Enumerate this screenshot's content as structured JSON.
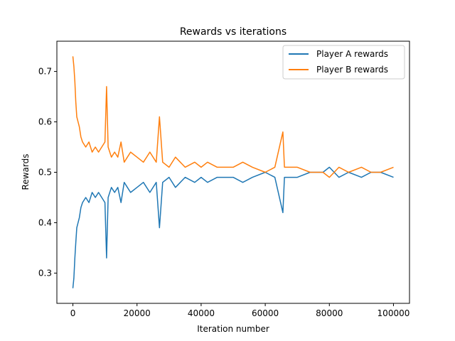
{
  "chart_data": {
    "type": "line",
    "title": "Rewards vs iterations",
    "xlabel": "Iteration number",
    "ylabel": "Rewards",
    "xlim": [
      -5000,
      105000
    ],
    "ylim": [
      0.24,
      0.76
    ],
    "xticks": [
      0,
      20000,
      40000,
      60000,
      80000,
      100000
    ],
    "xtick_labels": [
      "0",
      "20000",
      "40000",
      "60000",
      "80000",
      "100000"
    ],
    "yticks": [
      0.3,
      0.4,
      0.5,
      0.6,
      0.7
    ],
    "ytick_labels": [
      "0.3",
      "0.4",
      "0.5",
      "0.6",
      "0.7"
    ],
    "grid": false,
    "legend_position": "top-right",
    "series": [
      {
        "name": "Player A rewards",
        "color": "#1f77b4",
        "x": [
          0,
          300,
          600,
          900,
          1200,
          1600,
          2000,
          2500,
          3000,
          4000,
          5000,
          6000,
          7000,
          8000,
          9000,
          10000,
          10500,
          11000,
          12000,
          13000,
          14000,
          15000,
          16000,
          17000,
          18000,
          20000,
          22000,
          24000,
          26000,
          27000,
          28000,
          30000,
          32000,
          35000,
          38000,
          40000,
          42000,
          45000,
          48000,
          50000,
          53000,
          56000,
          60000,
          63000,
          65500,
          66000,
          70000,
          74000,
          78000,
          80000,
          83000,
          86000,
          90000,
          93000,
          96000,
          100000
        ],
        "values": [
          0.27,
          0.29,
          0.33,
          0.36,
          0.39,
          0.4,
          0.41,
          0.43,
          0.44,
          0.45,
          0.44,
          0.46,
          0.45,
          0.46,
          0.45,
          0.44,
          0.33,
          0.45,
          0.47,
          0.46,
          0.47,
          0.44,
          0.48,
          0.47,
          0.46,
          0.47,
          0.48,
          0.46,
          0.48,
          0.39,
          0.48,
          0.49,
          0.47,
          0.49,
          0.48,
          0.49,
          0.48,
          0.49,
          0.49,
          0.49,
          0.48,
          0.49,
          0.5,
          0.49,
          0.42,
          0.49,
          0.49,
          0.5,
          0.5,
          0.51,
          0.49,
          0.5,
          0.49,
          0.5,
          0.5,
          0.49
        ]
      },
      {
        "name": "Player B rewards",
        "color": "#ff7f0e",
        "x": [
          0,
          300,
          600,
          900,
          1200,
          1600,
          2000,
          2500,
          3000,
          4000,
          5000,
          6000,
          7000,
          8000,
          9000,
          10000,
          10500,
          11000,
          12000,
          13000,
          14000,
          15000,
          16000,
          17000,
          18000,
          20000,
          22000,
          24000,
          26000,
          27000,
          28000,
          30000,
          32000,
          35000,
          38000,
          40000,
          42000,
          45000,
          48000,
          50000,
          53000,
          56000,
          60000,
          63000,
          65500,
          66000,
          70000,
          74000,
          78000,
          80000,
          83000,
          86000,
          90000,
          93000,
          96000,
          100000
        ],
        "values": [
          0.73,
          0.71,
          0.68,
          0.64,
          0.61,
          0.6,
          0.59,
          0.57,
          0.56,
          0.55,
          0.56,
          0.54,
          0.55,
          0.54,
          0.55,
          0.56,
          0.67,
          0.55,
          0.53,
          0.54,
          0.53,
          0.56,
          0.52,
          0.53,
          0.54,
          0.53,
          0.52,
          0.54,
          0.52,
          0.61,
          0.52,
          0.51,
          0.53,
          0.51,
          0.52,
          0.51,
          0.52,
          0.51,
          0.51,
          0.51,
          0.52,
          0.51,
          0.5,
          0.51,
          0.58,
          0.51,
          0.51,
          0.5,
          0.5,
          0.49,
          0.51,
          0.5,
          0.51,
          0.5,
          0.5,
          0.51
        ]
      }
    ]
  }
}
